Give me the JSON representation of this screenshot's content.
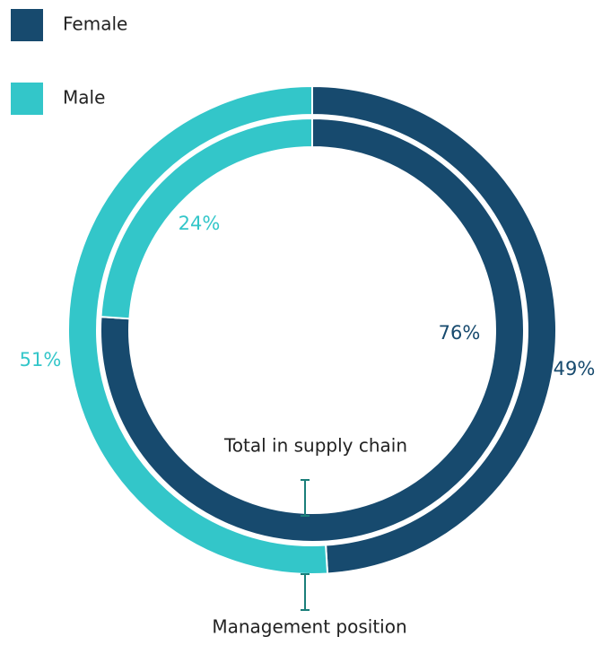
{
  "chart_data": {
    "type": "nested-donut",
    "categories": [
      "Female",
      "Male"
    ],
    "colors": [
      "#174a6e",
      "#33c6c9"
    ],
    "rings": [
      {
        "name": "Total in supply chain",
        "values": [
          76,
          24
        ],
        "value_labels": [
          "76%",
          "24%"
        ]
      },
      {
        "name": "Management position",
        "values": [
          49,
          51
        ],
        "value_labels": [
          "49%",
          "51%"
        ]
      }
    ]
  }
}
